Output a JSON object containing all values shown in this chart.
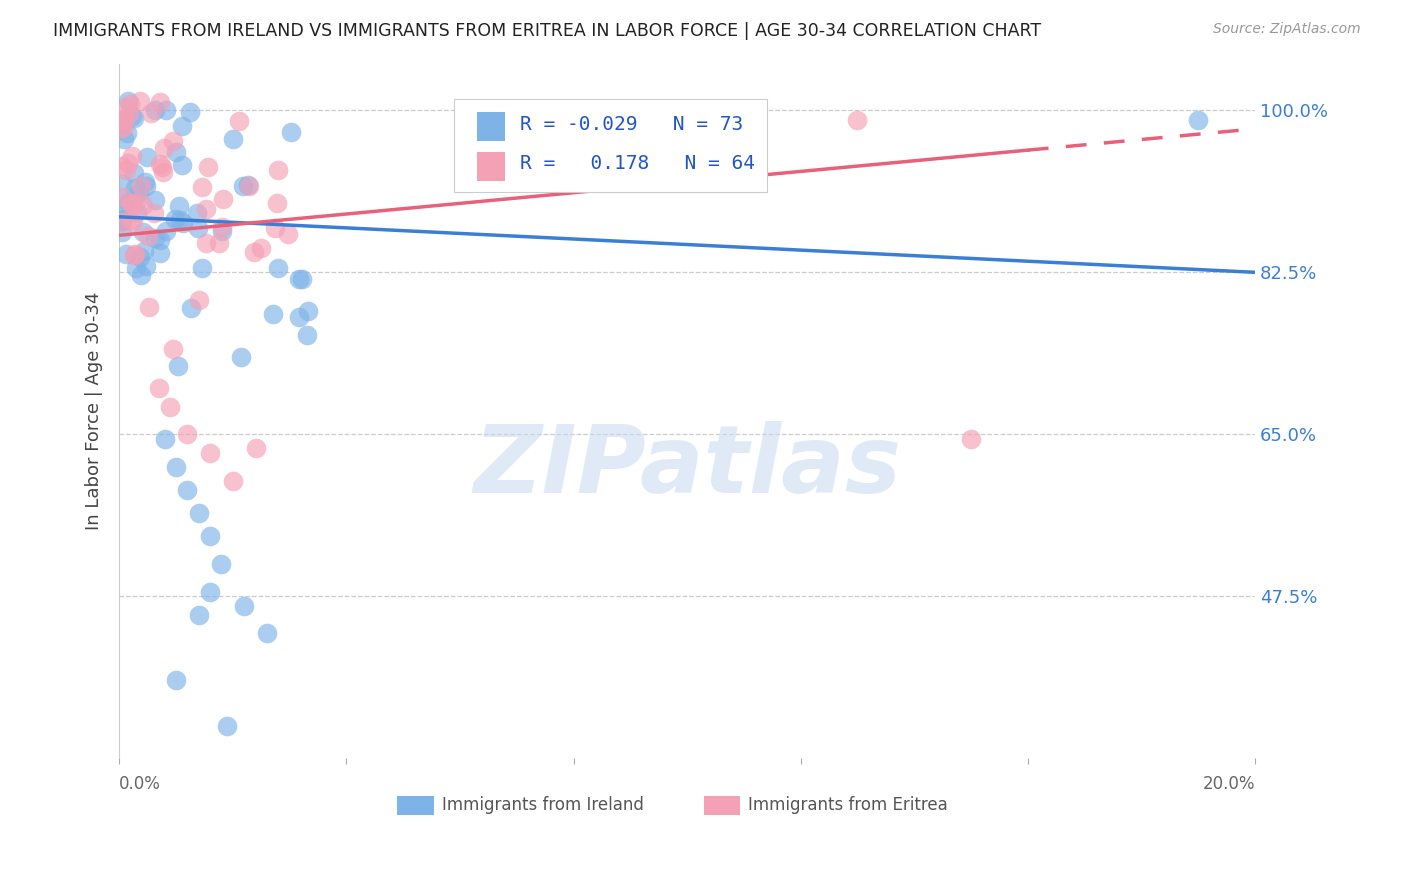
{
  "title": "IMMIGRANTS FROM IRELAND VS IMMIGRANTS FROM ERITREA IN LABOR FORCE | AGE 30-34 CORRELATION CHART",
  "source": "Source: ZipAtlas.com",
  "ylabel": "In Labor Force | Age 30-34",
  "xlim": [
    0.0,
    0.2
  ],
  "ylim": [
    0.3,
    1.05
  ],
  "ytick_labels": [
    "47.5%",
    "65.0%",
    "82.5%",
    "100.0%"
  ],
  "ytick_values": [
    0.475,
    0.65,
    0.825,
    1.0
  ],
  "legend_ireland_R": "-0.029",
  "legend_ireland_N": "73",
  "legend_eritrea_R": "0.178",
  "legend_eritrea_N": "64",
  "ireland_color": "#7EB3E8",
  "eritrea_color": "#F4A0B5",
  "ireland_line_color": "#3A7FD5",
  "eritrea_line_color": "#E8607A",
  "watermark_text": "ZIPatlas",
  "background_color": "#ffffff",
  "grid_color": "#cccccc",
  "ireland_line_y0": 0.885,
  "ireland_line_y1": 0.825,
  "eritrea_line_y0": 0.865,
  "eritrea_line_y1": 0.98
}
